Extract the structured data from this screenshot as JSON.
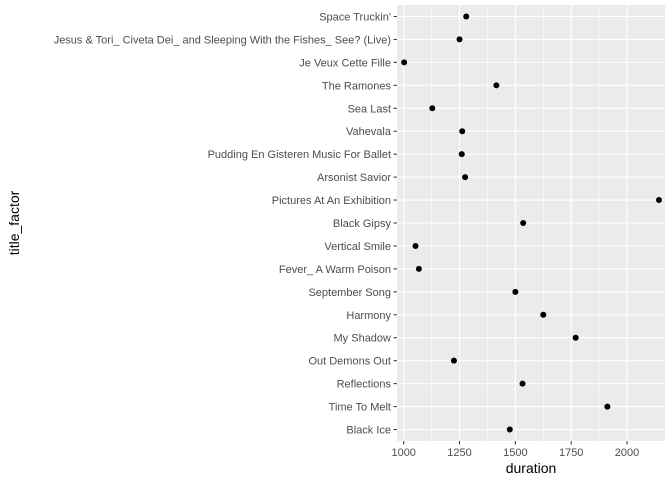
{
  "chart_data": {
    "type": "scatter",
    "title": "",
    "xlabel": "duration",
    "ylabel": "title_factor",
    "xlim": [
      970,
      2170
    ],
    "x_ticks": [
      1000,
      1250,
      1500,
      1750,
      2000
    ],
    "x_tick_labels": [
      "1000",
      "1250",
      "1500",
      "1750",
      "2000"
    ],
    "grid": true,
    "legend": "none",
    "categories": [
      "Space Truckin'",
      "Jesus & Tori_ Civeta Dei_ and Sleeping With the Fishes_ See? (Live)",
      "Je Veux Cette Fille",
      "The Ramones",
      "Sea Last",
      "Vahevala",
      "Pudding En Gisteren Music For Ballet",
      "Arsonist Savior",
      "Pictures At An Exhibition",
      "Black Gipsy",
      "Vertical Smile",
      "Fever_ A Warm Poison",
      "September Song",
      "Harmony",
      "My Shadow",
      "Out Demons Out",
      "Reflections",
      "Time To Melt",
      "Black Ice"
    ],
    "values": [
      1280,
      1250,
      1002,
      1415,
      1128,
      1262,
      1260,
      1275,
      2143,
      1535,
      1053,
      1068,
      1500,
      1625,
      1770,
      1225,
      1532,
      1912,
      1475
    ]
  },
  "colors": {
    "panel_background": "#ebebeb",
    "grid_major": "#ffffff",
    "point": "#000000",
    "tick_label": "#4d4d4d",
    "axis_tick": "#333333"
  }
}
